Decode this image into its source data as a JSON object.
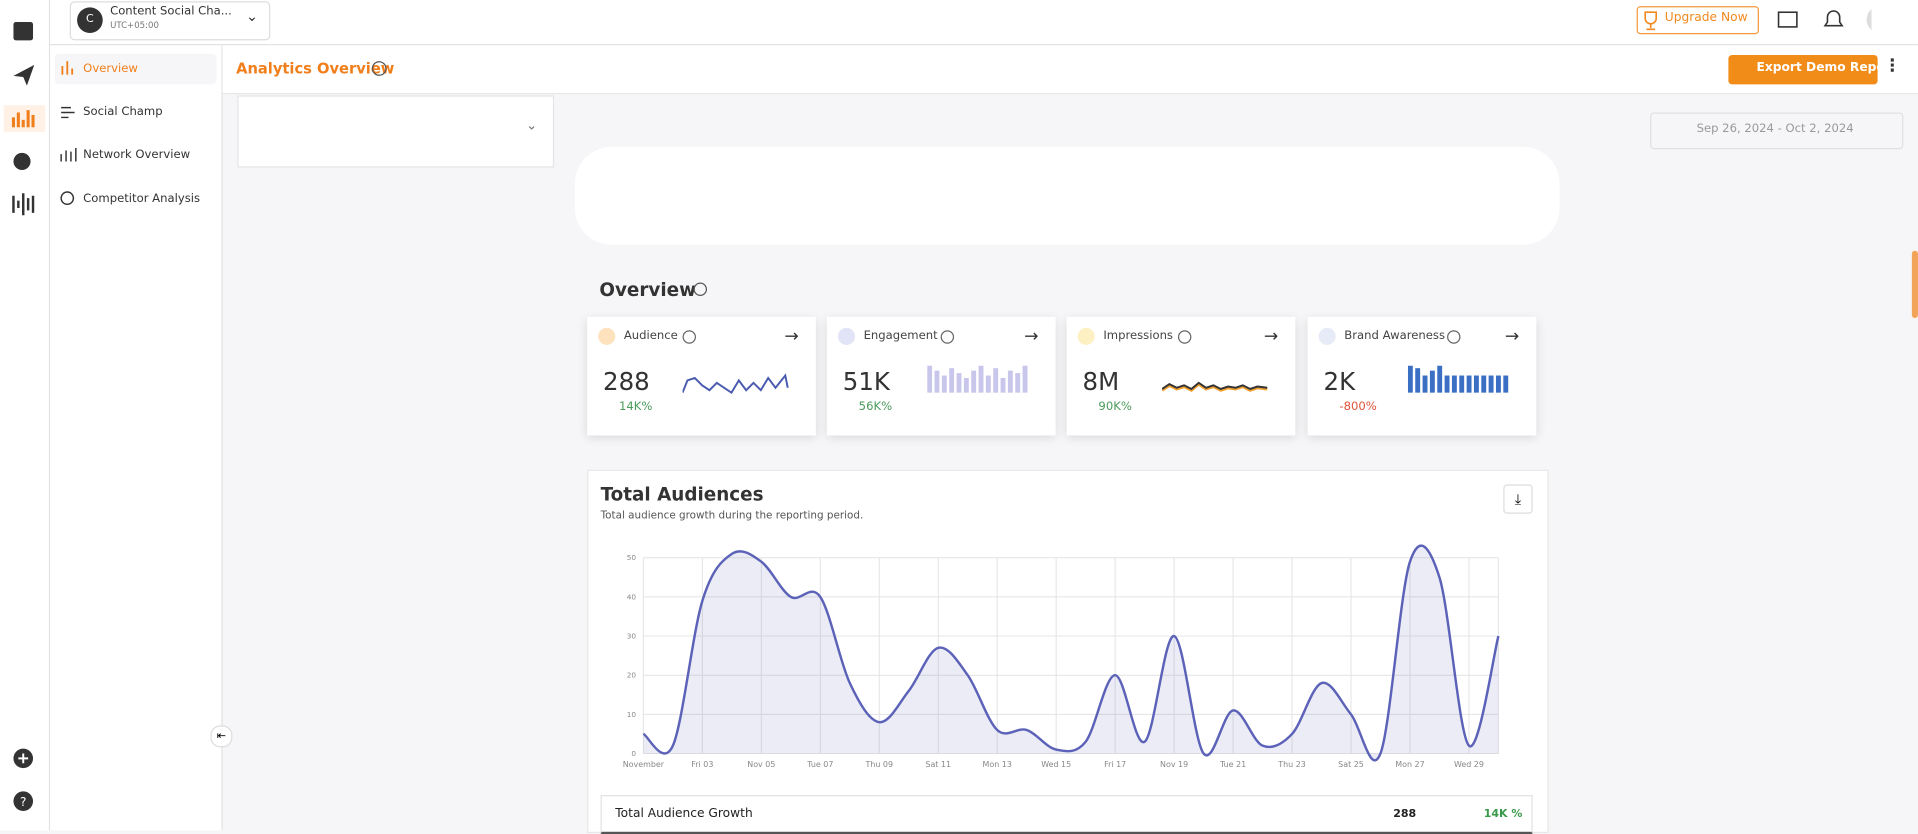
{
  "header": {
    "avatar_letter": "C",
    "workspace": "Content Social Cha...",
    "timezone": "UTC+05:00",
    "upgrade": "Upgrade Now"
  },
  "nav": [
    "Overview",
    "Social Champ",
    "Network Overview",
    "Competitor Analysis"
  ],
  "page": {
    "title": "Analytics Overview",
    "export": "Export Demo Report",
    "date_range": "Sep 26, 2024 - Oct 2, 2024"
  },
  "overview": {
    "title": "Overview",
    "cards": [
      {
        "name": "Audience",
        "value": "288",
        "change": "14K%"
      },
      {
        "name": "Engagement",
        "value": "51K",
        "change": "56K%"
      },
      {
        "name": "Impressions",
        "value": "8M",
        "change": "90K%"
      },
      {
        "name": "Brand Awareness",
        "value": "2K",
        "change": "-800%"
      }
    ]
  },
  "audience_chart": {
    "type": "area",
    "title": "Total Audiences",
    "subtitle": "Total audience growth during the reporting period.",
    "categories": [
      "November",
      null,
      "Fri 03",
      null,
      "Nov 05",
      null,
      "Tue 07",
      null,
      "Thu 09",
      null,
      "Sat 11",
      null,
      "Mon 13",
      null,
      "Wed 15",
      null,
      "Fri 17",
      null,
      "Nov 19",
      null,
      "Tue 21",
      null,
      "Thu 23",
      null,
      "Sat 25",
      null,
      "Mon 27",
      null,
      "Wed 29",
      null
    ],
    "values": [
      5,
      2,
      39,
      51,
      49,
      40,
      40,
      18,
      8,
      16,
      27,
      20,
      6,
      6,
      1,
      3,
      20,
      3,
      30,
      0,
      11,
      2,
      5,
      18,
      10,
      0,
      49,
      45,
      2,
      30
    ],
    "color": "#5b62b8",
    "ylim": [
      0,
      50
    ],
    "yticks": [
      0,
      10,
      20,
      30,
      40,
      50
    ],
    "grid": true
  },
  "growth_row": {
    "label": "Total Audience Growth",
    "value": "288",
    "change": "14K %"
  }
}
